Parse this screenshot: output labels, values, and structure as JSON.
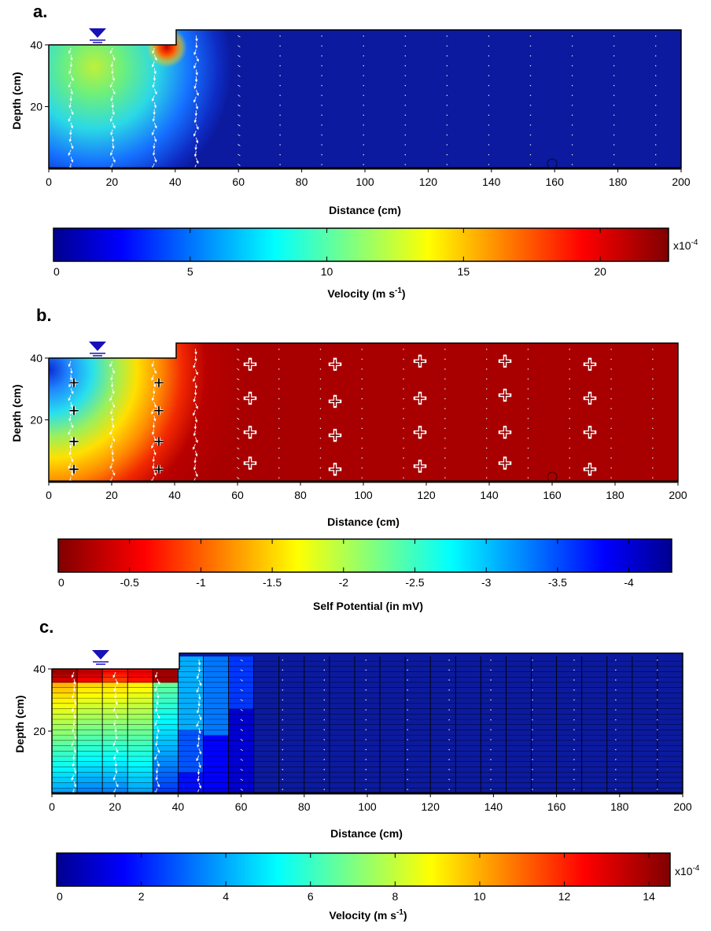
{
  "figure": {
    "panels": [
      {
        "letter": "a.",
        "colorbar": {
          "label": "Velocity (m s",
          "label_sup": "-1",
          "label_tail": ")",
          "exponent": "x10",
          "exponent_sup": "-4"
        }
      },
      {
        "letter": "b.",
        "colorbar": {
          "label": "Self Potential (in mV)",
          "label_sup": "",
          "label_tail": "",
          "exponent": "",
          "exponent_sup": ""
        }
      },
      {
        "letter": "c.",
        "colorbar": {
          "label": "Velocity (m s",
          "label_sup": "-1",
          "label_tail": ")",
          "exponent": "x10",
          "exponent_sup": "-4"
        }
      }
    ]
  },
  "chart_data": [
    {
      "type": "heatmap",
      "title": "",
      "panel": "a.",
      "field": "flow velocity with flow vectors",
      "xlabel": "Distance (cm)",
      "ylabel": "Depth (cm)",
      "xlim": [
        0,
        200
      ],
      "ylim": [
        0,
        44
      ],
      "xticks": [
        0,
        20,
        40,
        60,
        80,
        100,
        120,
        140,
        160,
        180,
        200
      ],
      "yticks": [
        20,
        40
      ],
      "geometry": {
        "reservoir_surface_depth": 40,
        "step_x": 40,
        "right_surface_depth": 44,
        "water_table_x": 15
      },
      "colormap": "jet",
      "colorbar": {
        "min": 0,
        "max": 22.5,
        "ticks": [
          0,
          5,
          10,
          15,
          20
        ],
        "tick_labels": [
          "0",
          "5",
          "10",
          "15",
          "20"
        ],
        "scale": "x10^-4",
        "label": "Velocity (m s-1)"
      }
    },
    {
      "type": "heatmap",
      "title": "",
      "panel": "b.",
      "field": "self potential with flow vectors and electrode positions",
      "xlabel": "Distance (cm)",
      "ylabel": "Depth (cm)",
      "xlim": [
        0,
        200
      ],
      "ylim": [
        0,
        44
      ],
      "xticks": [
        0,
        20,
        40,
        60,
        80,
        100,
        120,
        140,
        160,
        180,
        200
      ],
      "yticks": [
        20,
        40
      ],
      "geometry": {
        "reservoir_surface_depth": 40,
        "step_x": 40,
        "right_surface_depth": 44,
        "water_table_x": 15
      },
      "colormap": "jet (reversed, 0 = dark red)",
      "colorbar": {
        "min": 0,
        "max": -4.3,
        "ticks": [
          0,
          -0.5,
          -1,
          -1.5,
          -2,
          -2.5,
          -3,
          -3.5,
          -4
        ],
        "tick_labels": [
          "0",
          "-0.5",
          "-1",
          "-1.5",
          "-2",
          "-2.5",
          "-3",
          "-3.5",
          "-4"
        ],
        "label": "Self Potential (in mV)"
      },
      "electrodes": [
        {
          "x": 8,
          "y": 32
        },
        {
          "x": 8,
          "y": 23
        },
        {
          "x": 8,
          "y": 13
        },
        {
          "x": 8,
          "y": 4
        },
        {
          "x": 35,
          "y": 32
        },
        {
          "x": 35,
          "y": 23
        },
        {
          "x": 35,
          "y": 13
        },
        {
          "x": 35,
          "y": 4
        },
        {
          "x": 64,
          "y": 38
        },
        {
          "x": 64,
          "y": 27
        },
        {
          "x": 64,
          "y": 16
        },
        {
          "x": 64,
          "y": 6
        },
        {
          "x": 91,
          "y": 38
        },
        {
          "x": 91,
          "y": 26
        },
        {
          "x": 91,
          "y": 15
        },
        {
          "x": 91,
          "y": 4
        },
        {
          "x": 118,
          "y": 39
        },
        {
          "x": 118,
          "y": 27
        },
        {
          "x": 118,
          "y": 16
        },
        {
          "x": 118,
          "y": 5
        },
        {
          "x": 145,
          "y": 39
        },
        {
          "x": 145,
          "y": 28
        },
        {
          "x": 145,
          "y": 16
        },
        {
          "x": 145,
          "y": 6
        },
        {
          "x": 172,
          "y": 38
        },
        {
          "x": 172,
          "y": 27
        },
        {
          "x": 172,
          "y": 16
        },
        {
          "x": 172,
          "y": 4
        }
      ]
    },
    {
      "type": "heatmap",
      "title": "",
      "panel": "c.",
      "field": "block-averaged flow velocity with flow vectors",
      "xlabel": "Distance (cm)",
      "ylabel": "Depth (cm)",
      "xlim": [
        0,
        200
      ],
      "ylim": [
        0,
        44
      ],
      "xticks": [
        0,
        20,
        40,
        60,
        80,
        100,
        120,
        140,
        160,
        180,
        200
      ],
      "yticks": [
        20,
        40
      ],
      "geometry": {
        "reservoir_surface_depth": 40,
        "step_x": 40,
        "right_surface_depth": 44,
        "water_table_x": 15
      },
      "colormap": "jet",
      "colorbar": {
        "min": 0,
        "max": 14.5,
        "ticks": [
          0,
          2,
          4,
          6,
          8,
          10,
          12,
          14
        ],
        "tick_labels": [
          "0",
          "2",
          "4",
          "6",
          "8",
          "10",
          "12",
          "14"
        ],
        "scale": "x10^-4",
        "label": "Velocity (m s-1)"
      }
    }
  ]
}
